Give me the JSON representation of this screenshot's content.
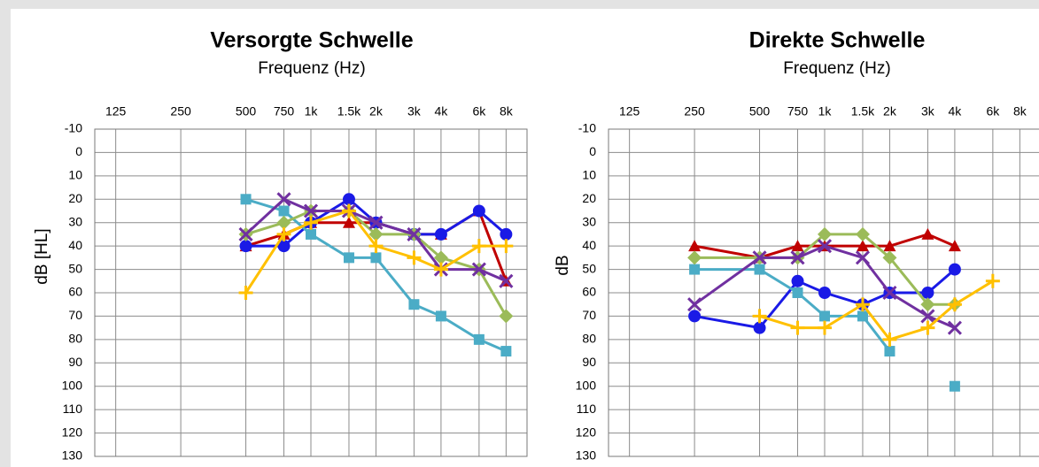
{
  "chart_data": [
    {
      "type": "line",
      "title": "Versorgte Schwelle",
      "subtitle": "Frequenz (Hz)",
      "y_label": "dB [HL]",
      "x": [
        500,
        750,
        1000,
        1500,
        2000,
        3000,
        4000,
        6000,
        8000
      ],
      "xlim": [
        100,
        10000
      ],
      "x_log": true,
      "xticks": [
        125,
        250,
        500,
        750,
        {
          "value": 1000,
          "label": "1k"
        },
        {
          "value": 1500,
          "label": "1.5k"
        },
        {
          "value": 2000,
          "label": "2k"
        },
        {
          "value": 3000,
          "label": "3k"
        },
        {
          "value": 4000,
          "label": "4k"
        },
        {
          "value": 6000,
          "label": "6k"
        },
        {
          "value": 8000,
          "label": "8k"
        }
      ],
      "ylim": [
        -10,
        130
      ],
      "y_inverted": true,
      "yticks": [
        -10,
        0,
        10,
        20,
        30,
        40,
        50,
        60,
        70,
        80,
        90,
        100,
        110,
        120,
        130
      ],
      "grid": true,
      "series": [
        {
          "color": "#c00000",
          "marker": "triangle",
          "values": [
            40,
            35,
            30,
            30,
            30,
            35,
            35,
            25,
            55
          ]
        },
        {
          "color": "#1a1ae6",
          "marker": "circle",
          "values": [
            40,
            40,
            30,
            20,
            30,
            35,
            35,
            25,
            35
          ]
        },
        {
          "color": "#4bacc6",
          "marker": "square",
          "values": [
            20,
            25,
            35,
            45,
            45,
            65,
            70,
            80,
            85
          ]
        },
        {
          "color": "#9bbb59",
          "marker": "diamond",
          "values": [
            35,
            30,
            25,
            25,
            35,
            35,
            45,
            50,
            70
          ]
        },
        {
          "color": "#7030a0",
          "marker": "x",
          "values": [
            35,
            20,
            25,
            25,
            30,
            35,
            50,
            50,
            55
          ]
        },
        {
          "color": "#ffc000",
          "marker": "plus",
          "values": [
            60,
            35,
            30,
            25,
            40,
            45,
            50,
            40,
            40
          ]
        }
      ]
    },
    {
      "type": "line",
      "title": "Direkte Schwelle",
      "subtitle": "Frequenz (Hz)",
      "y_label": "dB",
      "x": [
        250,
        500,
        750,
        1000,
        1500,
        2000,
        3000,
        4000,
        6000
      ],
      "xlim": [
        100,
        10000
      ],
      "x_log": true,
      "xticks": [
        125,
        250,
        500,
        750,
        {
          "value": 1000,
          "label": "1k"
        },
        {
          "value": 1500,
          "label": "1.5k"
        },
        {
          "value": 2000,
          "label": "2k"
        },
        {
          "value": 3000,
          "label": "3k"
        },
        {
          "value": 4000,
          "label": "4k"
        },
        {
          "value": 6000,
          "label": "6k"
        },
        {
          "value": 8000,
          "label": "8k"
        }
      ],
      "ylim": [
        -10,
        130
      ],
      "y_inverted": true,
      "yticks": [
        -10,
        0,
        10,
        20,
        30,
        40,
        50,
        60,
        70,
        80,
        90,
        100,
        110,
        120,
        130
      ],
      "grid": true,
      "series": [
        {
          "color": "#c00000",
          "marker": "triangle",
          "values": [
            40,
            45,
            40,
            40,
            40,
            40,
            35,
            40,
            null
          ]
        },
        {
          "color": "#1a1ae6",
          "marker": "circle",
          "values": [
            70,
            75,
            55,
            60,
            65,
            60,
            60,
            50,
            null
          ]
        },
        {
          "color": "#4bacc6",
          "marker": "square",
          "values": [
            50,
            50,
            60,
            70,
            70,
            85,
            null,
            100,
            null
          ]
        },
        {
          "color": "#9bbb59",
          "marker": "diamond",
          "values": [
            45,
            45,
            45,
            35,
            35,
            45,
            65,
            65,
            null
          ]
        },
        {
          "color": "#7030a0",
          "marker": "x",
          "values": [
            65,
            45,
            45,
            40,
            45,
            60,
            70,
            75,
            null
          ]
        },
        {
          "color": "#ffc000",
          "marker": "plus",
          "values": [
            null,
            70,
            75,
            75,
            65,
            80,
            75,
            65,
            55
          ]
        }
      ]
    }
  ]
}
